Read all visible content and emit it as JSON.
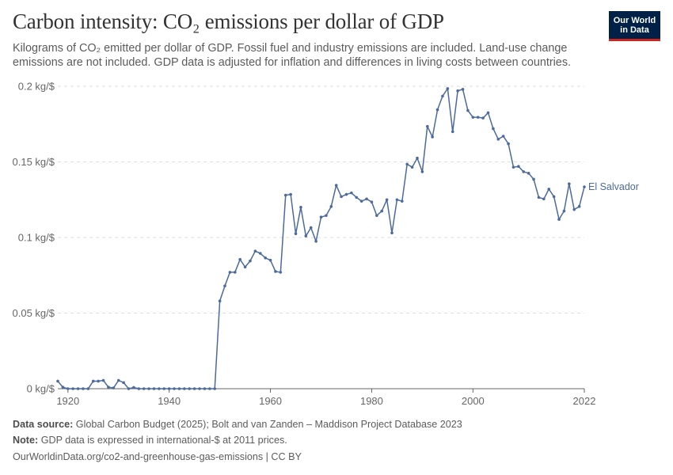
{
  "header": {
    "title": "Carbon intensity: CO₂ emissions per dollar of GDP",
    "subtitle": "Kilograms of CO₂ emitted per dollar of GDP. Fossil fuel and industry emissions are included. Land-use change emissions are not included. GDP data is adjusted for inflation and differences in living costs between countries."
  },
  "logo": {
    "line1": "Our World",
    "line2": "in Data"
  },
  "footer": {
    "source_label": "Data source:",
    "source_text": "Global Carbon Budget (2025); Bolt and van Zanden – Maddison Project Database 2023",
    "note_label": "Note:",
    "note_text": "GDP data is expressed in international-$ at 2011 prices.",
    "url": "OurWorldinData.org/co2-and-greenhouse-gas-emissions | CC BY"
  },
  "colors": {
    "series": "#4c6a9c",
    "grid": "#dddddd",
    "axis": "#666666",
    "tick_text": "#666666"
  },
  "chart_data": {
    "type": "line",
    "title": "Carbon intensity: CO₂ emissions per dollar of GDP",
    "xlabel": "",
    "ylabel": "",
    "xlim": [
      1918,
      2022
    ],
    "ylim": [
      0,
      0.2
    ],
    "x_ticks": [
      1920,
      1940,
      1960,
      1980,
      2000,
      2022
    ],
    "y_ticks": [
      0,
      0.05,
      0.1,
      0.15,
      0.2
    ],
    "y_tick_labels": [
      "0 kg/$",
      "0.05 kg/$",
      "0.1 kg/$",
      "0.15 kg/$",
      "0.2 kg/$"
    ],
    "grid": "horizontal dashed",
    "legend": "label at line end",
    "series": [
      {
        "name": "El Salvador",
        "x": [
          1918,
          1919,
          1920,
          1921,
          1922,
          1923,
          1924,
          1925,
          1926,
          1927,
          1928,
          1929,
          1930,
          1931,
          1932,
          1933,
          1934,
          1935,
          1936,
          1937,
          1938,
          1939,
          1940,
          1941,
          1942,
          1943,
          1944,
          1945,
          1946,
          1947,
          1948,
          1949,
          1950,
          1951,
          1952,
          1953,
          1954,
          1955,
          1956,
          1957,
          1958,
          1959,
          1960,
          1961,
          1962,
          1963,
          1964,
          1965,
          1966,
          1967,
          1968,
          1969,
          1970,
          1971,
          1972,
          1973,
          1974,
          1975,
          1976,
          1977,
          1978,
          1979,
          1980,
          1981,
          1982,
          1983,
          1984,
          1985,
          1986,
          1987,
          1988,
          1989,
          1990,
          1991,
          1992,
          1993,
          1994,
          1995,
          1996,
          1997,
          1998,
          1999,
          2000,
          2001,
          2002,
          2003,
          2004,
          2005,
          2006,
          2007,
          2008,
          2009,
          2010,
          2011,
          2012,
          2013,
          2014,
          2015,
          2016,
          2017,
          2018,
          2019,
          2020,
          2021,
          2022
        ],
        "values": [
          0.005,
          0.001,
          0,
          0,
          0,
          0,
          0,
          0.005,
          0.005,
          0.0055,
          0.001,
          0.0005,
          0.0055,
          0.004,
          0,
          0.0008,
          0,
          0,
          0,
          0,
          0,
          0,
          0,
          0,
          0,
          0,
          0,
          0,
          0,
          0,
          0,
          0,
          0.058,
          0.068,
          0.077,
          0.077,
          0.0855,
          0.0805,
          0.0845,
          0.091,
          0.0895,
          0.0865,
          0.085,
          0.0775,
          0.077,
          0.128,
          0.1285,
          0.1025,
          0.12,
          0.101,
          0.1065,
          0.0975,
          0.1135,
          0.1145,
          0.1205,
          0.1345,
          0.127,
          0.1285,
          0.1295,
          0.1265,
          0.124,
          0.1255,
          0.1235,
          0.1145,
          0.1175,
          0.125,
          0.103,
          0.125,
          0.124,
          0.1485,
          0.1465,
          0.1525,
          0.1435,
          0.1735,
          0.1665,
          0.1845,
          0.1935,
          0.1985,
          0.17,
          0.197,
          0.198,
          0.184,
          0.1795,
          0.1795,
          0.179,
          0.1825,
          0.172,
          0.165,
          0.167,
          0.162,
          0.1465,
          0.147,
          0.1435,
          0.1425,
          0.1385,
          0.1265,
          0.1255,
          0.132,
          0.127,
          0.112,
          0.1175,
          0.1355,
          0.1185,
          0.1205,
          0.1335
        ]
      }
    ]
  }
}
